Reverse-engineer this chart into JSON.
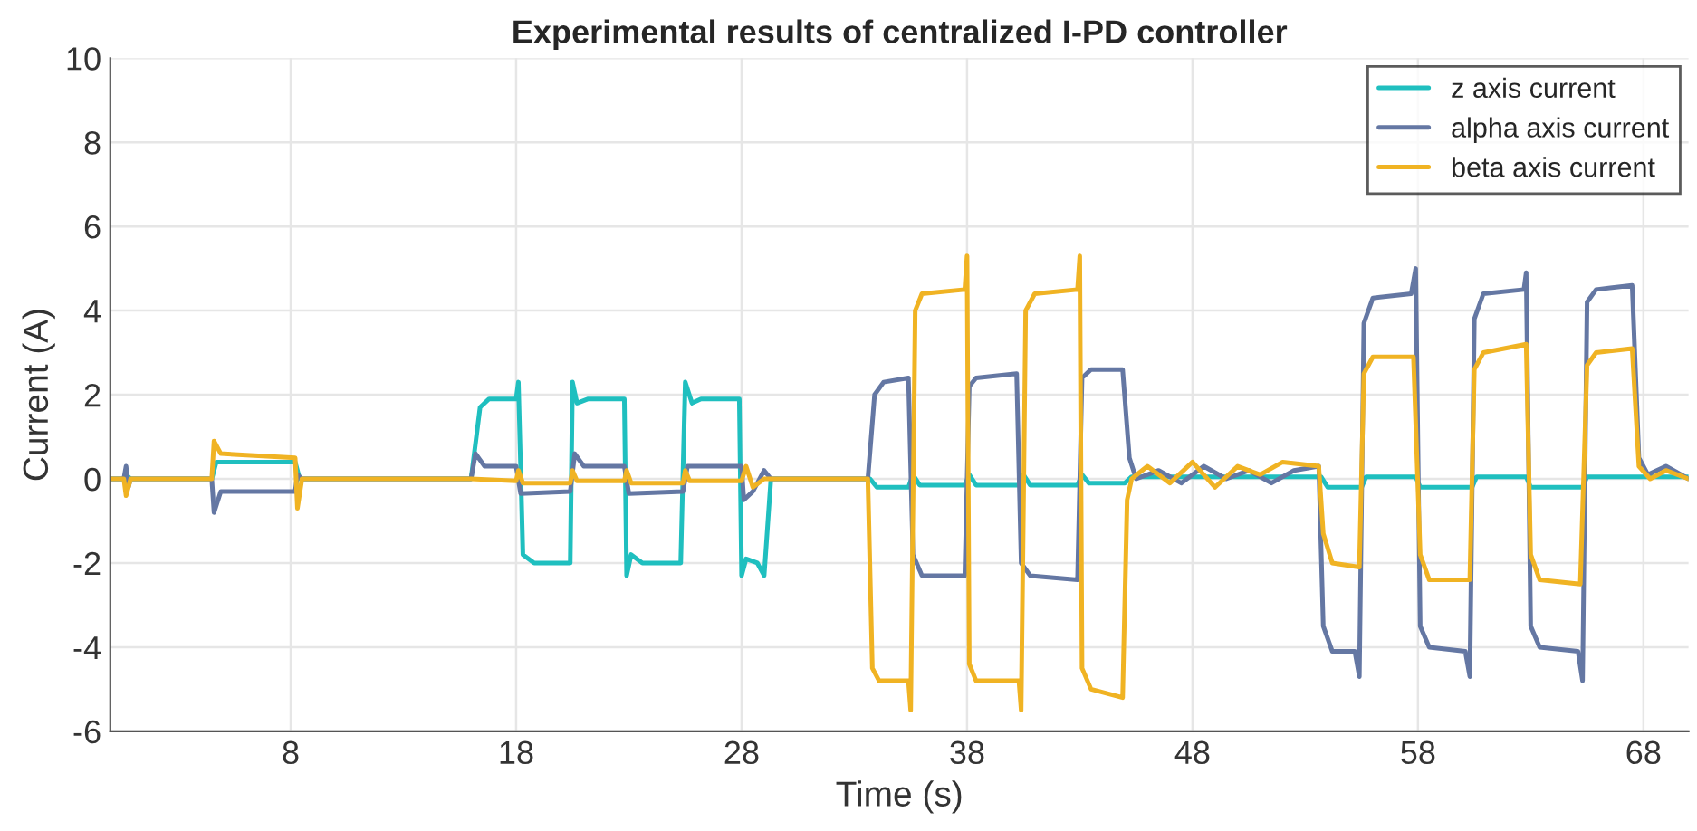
{
  "chart_data": {
    "type": "line",
    "title": "Experimental results of centralized I-PD controller",
    "xlabel": "Time (s)",
    "ylabel": "Current (A)",
    "xlim": [
      0,
      70
    ],
    "ylim": [
      -6,
      10
    ],
    "xticks": [
      8,
      18,
      28,
      38,
      48,
      58,
      68
    ],
    "yticks": [
      -6,
      -4,
      -2,
      0,
      2,
      4,
      6,
      8,
      10
    ],
    "grid": true,
    "legend": "top right",
    "line_style": "solid",
    "marker": "none",
    "series": [
      {
        "name": "z axis current",
        "color": "#1fbfbf",
        "x": [
          0,
          0.6,
          0.7,
          0.9,
          4.5,
          4.7,
          8.2,
          8.4,
          16.0,
          16.4,
          16.8,
          18.0,
          18.1,
          18.3,
          18.8,
          20.4,
          20.5,
          20.7,
          21.2,
          22.8,
          22.9,
          23.1,
          23.6,
          25.3,
          25.5,
          25.8,
          26.2,
          27.9,
          28.0,
          28.2,
          28.7,
          29.0,
          29.3,
          33.7,
          34.0,
          35.4,
          35.6,
          35.9,
          37.9,
          38.1,
          38.4,
          40.3,
          40.5,
          40.8,
          42.9,
          43.1,
          43.4,
          45.0,
          45.3,
          53.7,
          54.0,
          55.5,
          55.7,
          57.9,
          58.1,
          60.4,
          60.6,
          62.8,
          63.0,
          65.3,
          65.5,
          67.6,
          67.8,
          70
        ],
        "values": [
          0,
          0,
          0.1,
          0,
          0,
          0.4,
          0.4,
          0,
          0,
          1.7,
          1.9,
          1.9,
          2.3,
          -1.8,
          -2.0,
          -2.0,
          2.3,
          1.8,
          1.9,
          1.9,
          -2.3,
          -1.8,
          -2.0,
          -2.0,
          2.3,
          1.8,
          1.9,
          1.9,
          -2.3,
          -1.9,
          -2.0,
          -2.3,
          0,
          0,
          -0.2,
          -0.2,
          0.1,
          -0.15,
          -0.15,
          0.1,
          -0.15,
          -0.15,
          0.1,
          -0.15,
          -0.15,
          0.1,
          -0.1,
          -0.1,
          0.05,
          0.05,
          -0.2,
          -0.2,
          0.05,
          0.05,
          -0.2,
          -0.2,
          0.05,
          0.05,
          -0.2,
          -0.2,
          0.05,
          0.05,
          0.05,
          0.05
        ]
      },
      {
        "name": "alpha axis current",
        "color": "#6477a3",
        "x": [
          0,
          0.6,
          0.7,
          0.8,
          0.9,
          4.5,
          4.6,
          4.9,
          8.2,
          8.3,
          8.5,
          16.0,
          16.2,
          16.6,
          18.0,
          18.2,
          20.4,
          20.6,
          21.0,
          22.8,
          23.0,
          25.4,
          25.6,
          28.0,
          28.1,
          28.5,
          29.0,
          29.3,
          33.6,
          33.9,
          34.3,
          35.4,
          35.6,
          36.0,
          37.9,
          38.1,
          38.4,
          40.2,
          40.4,
          40.8,
          42.9,
          43.1,
          43.5,
          44.9,
          45.2,
          45.5,
          46.5,
          47.5,
          48.5,
          49.5,
          50.5,
          51.5,
          52.5,
          53.6,
          53.8,
          54.2,
          55.2,
          55.4,
          55.6,
          56.0,
          57.7,
          57.9,
          58.1,
          58.5,
          60.1,
          60.3,
          60.5,
          60.9,
          62.7,
          62.8,
          63.0,
          63.4,
          65.1,
          65.3,
          65.5,
          65.9,
          67.5,
          67.8,
          68.2,
          69.0,
          70
        ],
        "values": [
          0,
          0,
          0.3,
          -0.2,
          0,
          0,
          -0.8,
          -0.3,
          -0.3,
          0.1,
          0,
          0,
          0.6,
          0.3,
          0.3,
          -0.35,
          -0.3,
          0.6,
          0.3,
          0.3,
          -0.35,
          -0.3,
          0.3,
          0.3,
          -0.5,
          -0.3,
          0.2,
          0,
          0,
          2.0,
          2.3,
          2.4,
          -1.8,
          -2.3,
          -2.3,
          2.2,
          2.4,
          2.5,
          -2.0,
          -2.3,
          -2.4,
          2.4,
          2.6,
          2.6,
          0.5,
          0,
          0.2,
          -0.1,
          0.3,
          0,
          0.2,
          -0.1,
          0.2,
          0.3,
          -3.5,
          -4.1,
          -4.1,
          -4.7,
          3.7,
          4.3,
          4.4,
          5.0,
          -3.5,
          -4.0,
          -4.1,
          -4.7,
          3.8,
          4.4,
          4.5,
          4.9,
          -3.5,
          -4.0,
          -4.1,
          -4.8,
          4.2,
          4.5,
          4.6,
          0.5,
          0.1,
          0.3,
          0
        ]
      },
      {
        "name": "beta axis current",
        "color": "#f0b323",
        "x": [
          0,
          0.6,
          0.7,
          0.9,
          4.5,
          4.6,
          4.9,
          8.2,
          8.3,
          8.5,
          16.0,
          18.0,
          18.1,
          18.3,
          20.4,
          20.5,
          20.7,
          22.8,
          22.9,
          23.1,
          25.4,
          25.5,
          25.7,
          28.0,
          28.2,
          28.5,
          29.0,
          33.6,
          33.8,
          34.1,
          35.4,
          35.5,
          35.7,
          36.0,
          37.9,
          38.0,
          38.1,
          38.4,
          40.3,
          40.4,
          40.6,
          41.0,
          42.9,
          43.0,
          43.1,
          43.5,
          44.9,
          45.1,
          45.3,
          46.0,
          47.0,
          48.0,
          49.0,
          50.0,
          51.0,
          52.0,
          53.6,
          53.8,
          54.2,
          55.4,
          55.6,
          56.0,
          57.8,
          58.1,
          58.5,
          60.3,
          60.5,
          60.9,
          62.8,
          63.0,
          63.4,
          65.2,
          65.5,
          65.9,
          67.5,
          67.8,
          68.3,
          69.0,
          70
        ],
        "values": [
          0,
          0,
          -0.4,
          0,
          0,
          0.9,
          0.6,
          0.5,
          -0.7,
          0,
          0,
          -0.05,
          0.2,
          -0.1,
          -0.1,
          0.2,
          -0.05,
          -0.05,
          0.2,
          -0.1,
          -0.1,
          0.2,
          -0.05,
          -0.05,
          0.3,
          -0.2,
          0,
          0,
          -4.5,
          -4.8,
          -4.8,
          -5.5,
          4.0,
          4.4,
          4.5,
          5.3,
          -4.4,
          -4.8,
          -4.8,
          -5.5,
          4.0,
          4.4,
          4.5,
          5.3,
          -4.5,
          -5.0,
          -5.2,
          -0.5,
          0,
          0.3,
          -0.1,
          0.4,
          -0.2,
          0.3,
          0.1,
          0.4,
          0.3,
          -1.3,
          -2.0,
          -2.1,
          2.5,
          2.9,
          2.9,
          -1.8,
          -2.4,
          -2.4,
          2.6,
          3.0,
          3.2,
          -1.8,
          -2.4,
          -2.5,
          2.7,
          3.0,
          3.1,
          0.3,
          0,
          0.2,
          0
        ]
      }
    ]
  }
}
